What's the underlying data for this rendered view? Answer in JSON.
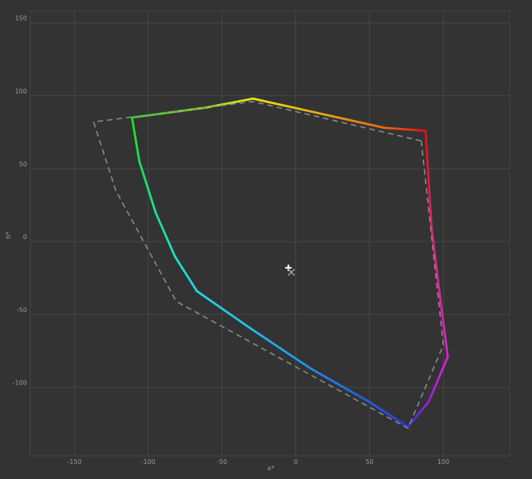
{
  "chart_data": {
    "type": "line",
    "xlabel": "a*",
    "ylabel": "b*",
    "xlim": [
      -180,
      145
    ],
    "ylim": [
      -147,
      158
    ],
    "x_ticks": [
      -150,
      -100,
      -50,
      0,
      50,
      100
    ],
    "y_ticks": [
      150,
      100,
      50,
      0,
      -50,
      -100
    ],
    "grid": true,
    "legend": "none",
    "series": [
      {
        "style": "solid-gradient",
        "points": [
          {
            "x": 88,
            "y": 76,
            "color": "#e01010"
          },
          {
            "x": 60,
            "y": 78,
            "color": "#e66a10"
          },
          {
            "x": 20,
            "y": 87,
            "color": "#e6a414"
          },
          {
            "x": -29,
            "y": 98,
            "color": "#e6e614"
          },
          {
            "x": -60,
            "y": 92,
            "color": "#98e018"
          },
          {
            "x": -111,
            "y": 85,
            "color": "#20dd20"
          },
          {
            "x": -106,
            "y": 55,
            "color": "#20dd5a"
          },
          {
            "x": -95,
            "y": 20,
            "color": "#1ee094"
          },
          {
            "x": -82,
            "y": -10,
            "color": "#20e0c4"
          },
          {
            "x": -67,
            "y": -34,
            "color": "#20d8e4"
          },
          {
            "x": -30,
            "y": -60,
            "color": "#1ec0ec"
          },
          {
            "x": 10,
            "y": -87,
            "color": "#1e8ee8"
          },
          {
            "x": 50,
            "y": -110,
            "color": "#1e5ee4"
          },
          {
            "x": 76,
            "y": -127,
            "color": "#2a3adc"
          },
          {
            "x": 90,
            "y": -110,
            "color": "#9a20d8"
          },
          {
            "x": 103,
            "y": -79,
            "color": "#e020d0"
          },
          {
            "x": 98,
            "y": -40,
            "color": "#e020a0"
          },
          {
            "x": 92,
            "y": 10,
            "color": "#e02070"
          },
          {
            "x": 88,
            "y": 76,
            "color": "#e01010"
          }
        ]
      },
      {
        "style": "dashed",
        "color": "#8a8a8a",
        "points": [
          {
            "x": 85,
            "y": 69
          },
          {
            "x": -29,
            "y": 96
          },
          {
            "x": -137,
            "y": 82
          },
          {
            "x": -122,
            "y": 35
          },
          {
            "x": -81,
            "y": -41
          },
          {
            "x": 76,
            "y": -128
          },
          {
            "x": 100,
            "y": -71
          },
          {
            "x": 85,
            "y": 69
          }
        ]
      }
    ],
    "markers": [
      {
        "symbol": "plus",
        "x": -5,
        "y": -18,
        "color": "#ffffff"
      },
      {
        "symbol": "cross",
        "x": -3,
        "y": -21,
        "color": "#9a9a9a"
      }
    ]
  }
}
